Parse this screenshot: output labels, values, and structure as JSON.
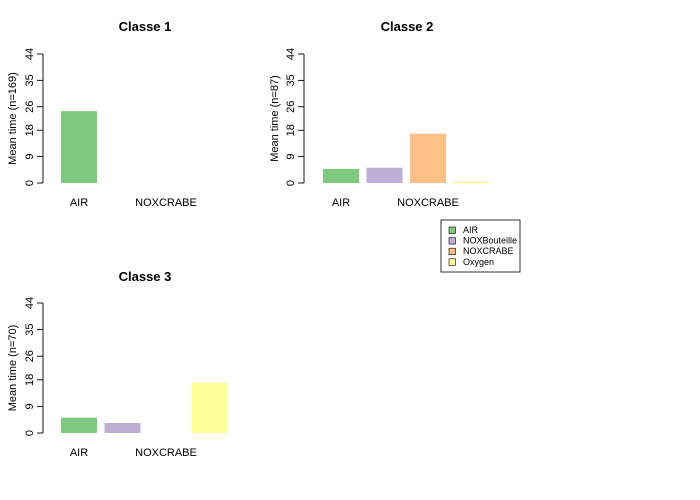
{
  "chart_data": [
    {
      "type": "bar",
      "title": "Classe 1",
      "ylabel": "Mean time (n=169)",
      "ylim": [
        0,
        44
      ],
      "yticks": [
        0,
        9,
        18,
        26,
        35,
        44
      ],
      "categories": [
        "AIR",
        "NOXBouteille",
        "NOXCRABE",
        "Oxygen"
      ],
      "category_tick_labels": [
        "AIR",
        "NOXCRABE"
      ],
      "values": [
        24.5,
        0,
        0,
        0
      ]
    },
    {
      "type": "bar",
      "title": "Classe 2",
      "ylabel": "Mean time (n=87)",
      "ylim": [
        0,
        44
      ],
      "yticks": [
        0,
        9,
        18,
        26,
        35,
        44
      ],
      "categories": [
        "AIR",
        "NOXBouteille",
        "NOXCRABE",
        "Oxygen"
      ],
      "category_tick_labels": [
        "AIR",
        "NOXCRABE"
      ],
      "values": [
        4.8,
        5.2,
        16.8,
        0.4
      ]
    },
    {
      "type": "bar",
      "title": "Classe 3",
      "ylabel": "Mean time (n=70)",
      "ylim": [
        0,
        44
      ],
      "yticks": [
        0,
        9,
        18,
        26,
        35,
        44
      ],
      "categories": [
        "AIR",
        "NOXBouteille",
        "NOXCRABE",
        "Oxygen"
      ],
      "category_tick_labels": [
        "AIR",
        "NOXCRABE"
      ],
      "values": [
        5.2,
        3.4,
        0,
        17.0
      ]
    }
  ],
  "legend": {
    "placement": "right-center",
    "entries": [
      {
        "label": "AIR",
        "color": "#7FC97F"
      },
      {
        "label": "NOXBouteille",
        "color": "#BEAED4"
      },
      {
        "label": "NOXCRABE",
        "color": "#FDC086"
      },
      {
        "label": "Oxygen",
        "color": "#FFFF99"
      }
    ]
  }
}
